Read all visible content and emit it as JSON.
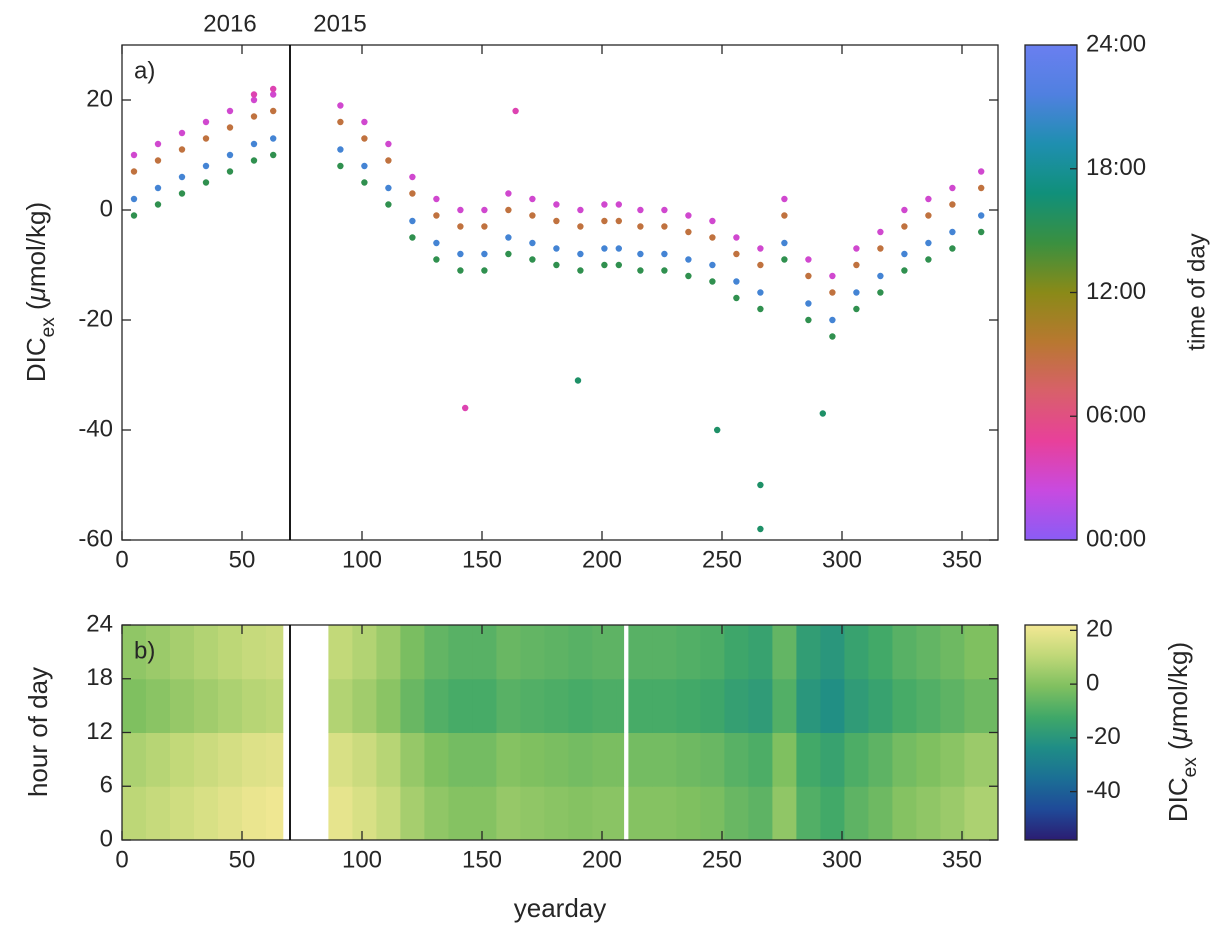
{
  "chart_data": [
    {
      "type": "scatter",
      "panel_label": "a)",
      "ylabel": [
        "DIC",
        "ex",
        " (",
        "μ",
        "mol/kg)"
      ],
      "year_labels": [
        {
          "value": 0,
          "label": "2016"
        },
        {
          "value": 70,
          "label": "2015"
        }
      ],
      "divider": 70,
      "xlim": [
        0,
        365
      ],
      "xticks": [
        0,
        50,
        100,
        150,
        200,
        250,
        300,
        350
      ],
      "ylim": [
        -60,
        30
      ],
      "yticks": [
        -60,
        -40,
        -20,
        0,
        20
      ],
      "colorbar": {
        "label": "time of day",
        "lim": [
          0,
          24
        ],
        "ticks": [
          {
            "value": 0,
            "label": "00:00"
          },
          {
            "value": 6,
            "label": "06:00"
          },
          {
            "value": 12,
            "label": "12:00"
          },
          {
            "value": 18,
            "label": "18:00"
          },
          {
            "value": 24,
            "label": "24:00"
          }
        ],
        "colormap": [
          "#8a5cf5",
          "#c84ae0",
          "#e8409a",
          "#d8606a",
          "#b87830",
          "#8a8a18",
          "#3a9040",
          "#10907a",
          "#1f8fb0",
          "#5080e0",
          "#6a7ff0"
        ]
      },
      "series": [
        {
          "hour": 3,
          "x": [
            5,
            15,
            25,
            35,
            45,
            55,
            63,
            91,
            101,
            111,
            121,
            131,
            141,
            151,
            161,
            171,
            181,
            191,
            201,
            207,
            216,
            226,
            236,
            246,
            256,
            266,
            276,
            286,
            296,
            306,
            316,
            326,
            336,
            346,
            358
          ],
          "y": [
            10,
            12,
            14,
            16,
            18,
            20,
            21,
            19,
            16,
            12,
            6,
            2,
            0,
            0,
            3,
            2,
            1,
            0,
            1,
            1,
            0,
            0,
            -1,
            -2,
            -5,
            -7,
            2,
            -9,
            -12,
            -7,
            -4,
            0,
            2,
            4,
            7
          ]
        },
        {
          "hour": 9,
          "x": [
            5,
            15,
            25,
            35,
            45,
            55,
            63,
            91,
            101,
            111,
            121,
            131,
            141,
            151,
            161,
            171,
            181,
            191,
            201,
            207,
            216,
            226,
            236,
            246,
            256,
            266,
            276,
            286,
            296,
            306,
            316,
            326,
            336,
            346,
            358
          ],
          "y": [
            7,
            9,
            11,
            13,
            15,
            17,
            18,
            16,
            13,
            9,
            3,
            -1,
            -3,
            -3,
            0,
            -1,
            -2,
            -3,
            -2,
            -2,
            -3,
            -3,
            -4,
            -5,
            -8,
            -10,
            -1,
            -12,
            -15,
            -10,
            -7,
            -3,
            -1,
            1,
            4
          ]
        },
        {
          "hour": 15,
          "x": [
            5,
            15,
            25,
            35,
            45,
            55,
            63,
            91,
            101,
            111,
            121,
            131,
            141,
            151,
            161,
            171,
            181,
            191,
            201,
            207,
            216,
            226,
            236,
            246,
            256,
            266,
            276,
            286,
            296,
            306,
            316,
            326,
            336,
            346,
            358
          ],
          "y": [
            -1,
            1,
            3,
            5,
            7,
            9,
            10,
            8,
            5,
            1,
            -5,
            -9,
            -11,
            -11,
            -8,
            -9,
            -10,
            -11,
            -10,
            -10,
            -11,
            -11,
            -12,
            -13,
            -16,
            -18,
            -9,
            -20,
            -23,
            -18,
            -15,
            -11,
            -9,
            -7,
            -4
          ]
        },
        {
          "hour": 21,
          "x": [
            5,
            15,
            25,
            35,
            45,
            55,
            63,
            91,
            101,
            111,
            121,
            131,
            141,
            151,
            161,
            171,
            181,
            191,
            201,
            207,
            216,
            226,
            236,
            246,
            256,
            266,
            276,
            286,
            296,
            306,
            316,
            326,
            336,
            346,
            358
          ],
          "y": [
            2,
            4,
            6,
            8,
            10,
            12,
            13,
            11,
            8,
            4,
            -2,
            -6,
            -8,
            -8,
            -5,
            -6,
            -7,
            -8,
            -7,
            -7,
            -8,
            -8,
            -9,
            -10,
            -13,
            -15,
            -6,
            -17,
            -20,
            -15,
            -12,
            -8,
            -6,
            -4,
            -1
          ]
        },
        {
          "hour": 16,
          "x": [
            266,
            266,
            248,
            292,
            190
          ],
          "y": [
            -58,
            -50,
            -40,
            -37,
            -31
          ]
        },
        {
          "hour": 4,
          "x": [
            143,
            164,
            55,
            63
          ],
          "y": [
            -36,
            18,
            21,
            22
          ]
        }
      ]
    },
    {
      "type": "heatmap",
      "panel_label": "b)",
      "xlabel": "yearday",
      "ylabel": "hour of day",
      "divider": 70,
      "xlim": [
        0,
        365
      ],
      "xticks": [
        0,
        50,
        100,
        150,
        200,
        250,
        300,
        350
      ],
      "ylim": [
        0,
        24
      ],
      "yticks": [
        0,
        6,
        12,
        18,
        24
      ],
      "x_edges": [
        0,
        10,
        20,
        30,
        40,
        50,
        60,
        67,
        86,
        96,
        106,
        116,
        126,
        136,
        146,
        156,
        166,
        176,
        186,
        196,
        206,
        209,
        211,
        221,
        231,
        241,
        251,
        261,
        271,
        281,
        291,
        301,
        311,
        321,
        331,
        341,
        351,
        365
      ],
      "y_edges": [
        0,
        6,
        12,
        18,
        24
      ],
      "z": [
        [
          10,
          12,
          14,
          16,
          18,
          20,
          21,
          null,
          19,
          16,
          12,
          6,
          2,
          0,
          0,
          3,
          2,
          1,
          0,
          1,
          1,
          null,
          0,
          0,
          -1,
          -2,
          -5,
          -7,
          2,
          -9,
          -12,
          -7,
          -4,
          0,
          2,
          4,
          7
        ],
        [
          7,
          9,
          11,
          13,
          15,
          17,
          18,
          null,
          16,
          13,
          9,
          3,
          -1,
          -3,
          -3,
          0,
          -1,
          -2,
          -3,
          -2,
          -2,
          null,
          -3,
          -3,
          -4,
          -5,
          -8,
          -10,
          -1,
          -12,
          -15,
          -10,
          -7,
          -3,
          -1,
          1,
          4
        ],
        [
          -1,
          1,
          3,
          5,
          7,
          9,
          10,
          null,
          8,
          5,
          1,
          -5,
          -9,
          -11,
          -11,
          -8,
          -9,
          -10,
          -11,
          -10,
          -10,
          null,
          -11,
          -11,
          -12,
          -13,
          -16,
          -18,
          -9,
          -20,
          -23,
          -18,
          -15,
          -11,
          -9,
          -7,
          -4
        ],
        [
          2,
          4,
          6,
          8,
          10,
          12,
          13,
          null,
          11,
          8,
          4,
          -2,
          -6,
          -8,
          -8,
          -5,
          -6,
          -7,
          -8,
          -7,
          -7,
          null,
          -8,
          -8,
          -9,
          -10,
          -13,
          -15,
          -6,
          -17,
          -20,
          -15,
          -12,
          -8,
          -6,
          -4,
          -1
        ]
      ],
      "colorbar": {
        "label": [
          "DIC",
          "ex",
          " (",
          "μ",
          "mol/kg)"
        ],
        "lim": [
          -58,
          22
        ],
        "ticks": [
          -40,
          -20,
          0,
          20
        ],
        "colormap": [
          "#2b1d72",
          "#1f4a98",
          "#1b6f95",
          "#1f8d86",
          "#40a868",
          "#80c060",
          "#c0d878",
          "#f3e894"
        ]
      }
    }
  ]
}
